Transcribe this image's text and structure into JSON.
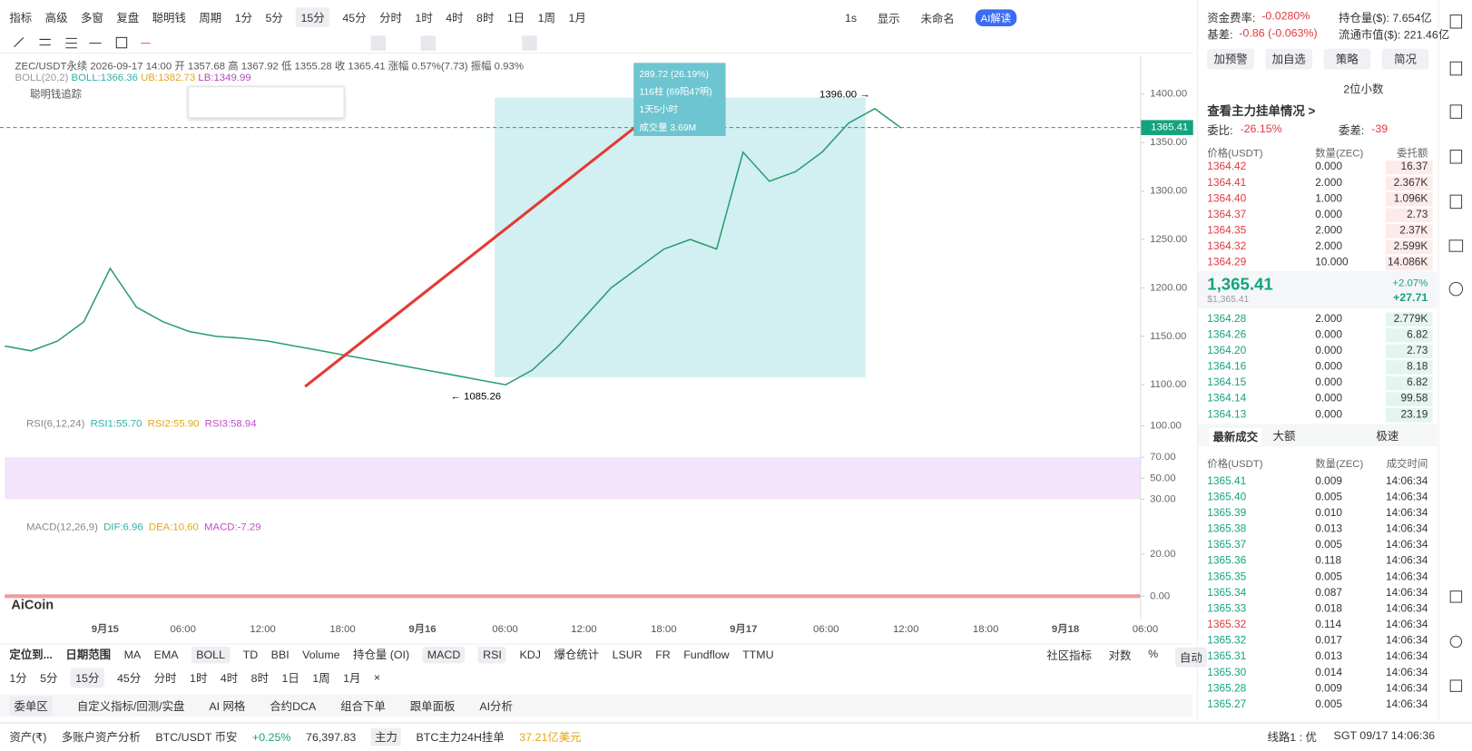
{
  "toolbar": {
    "items": [
      "指标",
      "高级",
      "多窗",
      "复盘",
      "聪明钱",
      "周期",
      "1分",
      "5分",
      "15分",
      "45分",
      "分时",
      "1时",
      "4时",
      "8时",
      "1日",
      "1周",
      "1月"
    ],
    "right": [
      "1s",
      "显示",
      "未命名",
      "AI解读"
    ]
  },
  "info": {
    "symbol_line": "ZEC/USDT永续  2026-09-17 14:00  开 1357.68  高 1367.92  低 1355.28  收 1365.41  涨幅 0.57%(7.73)  振幅 0.93%",
    "boll_name": "BOLL(20,2)",
    "boll": "BOLL:1366.36",
    "ub": "UB:1382.73",
    "lb": "LB:1349.99",
    "smart": "聪明钱追踪"
  },
  "measure": [
    "289.72 (26.19%)",
    "116柱 (69阳47明)",
    "1天5小时",
    "成交量 3.69M"
  ],
  "chart_data": [
    {
      "type": "line",
      "name": "ZEC/USDT",
      "color": "#2a9d6f",
      "values": [
        1140,
        1135,
        1145,
        1165,
        1220,
        1180,
        1165,
        1155,
        1150,
        1148,
        1145,
        1140,
        1135,
        1130,
        1125,
        1120,
        1115,
        1110,
        1105,
        1100,
        1115,
        1140,
        1170,
        1200,
        1220,
        1240,
        1250,
        1240,
        1340,
        1310,
        1320,
        1340,
        1370,
        1385,
        1365
      ],
      "ylim": [
        1071,
        1439
      ],
      "yticks": [
        {
          "value": 1400,
          "label": "1400.00"
        },
        {
          "value": 1350,
          "label": "1350.00"
        },
        {
          "value": 1300,
          "label": "1300.00"
        },
        {
          "value": 1250,
          "label": "1250.00"
        },
        {
          "value": 1200,
          "label": "1200.00"
        },
        {
          "value": 1150,
          "label": "1150.00"
        },
        {
          "value": 1100,
          "label": "1100.00"
        }
      ],
      "annotations": [
        "1396.00 →",
        "← 1085.26"
      ],
      "last_price": {
        "value": 1365.41,
        "label": "1365.41"
      },
      "x_labels": [
        "9月15",
        "06:00",
        "12:00",
        "18:00",
        "9月16",
        "06:00",
        "12:00",
        "18:00",
        "9月17",
        "06:00",
        "12:00",
        "18:00",
        "9月18",
        "06:00"
      ]
    },
    {
      "type": "band",
      "legend": [
        "RSI(6,12,24)",
        "RSI1:55.70",
        "RSI2:55.90",
        "RSI3:58.94"
      ],
      "ylim": [
        14,
        108
      ],
      "yticks": [
        {
          "value": 100,
          "label": "100.00"
        },
        {
          "value": 70,
          "label": "70.00"
        },
        {
          "value": 50,
          "label": "50.00"
        },
        {
          "value": 30,
          "label": "30.00"
        }
      ],
      "color": "#f3e4fb"
    },
    {
      "type": "macd",
      "legend": [
        "MACD(12,26,9)",
        "DIF:6.96",
        "DEA:10.60",
        "MACD:-7.29"
      ],
      "ylim": [
        -11,
        36
      ],
      "yticks": [
        {
          "value": 20,
          "label": "20.00"
        },
        {
          "value": 0,
          "label": "0.00"
        }
      ]
    }
  ],
  "logo": "AiCoin",
  "bottom": {
    "row1": [
      "定位到...",
      "日期范围",
      "MA",
      "EMA",
      "BOLL",
      "TD",
      "BBI",
      "Volume",
      "持仓量 (OI)",
      "MACD",
      "RSI",
      "KDJ",
      "爆仓统计",
      "LSUR",
      "FR",
      "Fundflow",
      "TTMU"
    ],
    "row1_right": [
      "社区指标",
      "对数",
      "%",
      "自动"
    ],
    "row2": [
      "1分",
      "5分",
      "15分",
      "45分",
      "分时",
      "1时",
      "4时",
      "8时",
      "1日",
      "1周",
      "1月",
      "×"
    ],
    "tabs": [
      "委单区",
      "自定义指标/回测/实盘",
      "AI 网格",
      "合约DCA",
      "组合下单",
      "跟单面板",
      "AI分析"
    ]
  },
  "status": {
    "asset": "资产(₹)",
    "multi": "多账户资产分析",
    "pair": "BTC/USDT 币安",
    "change": "+0.25%",
    "price": "76,397.83",
    "main": "主力",
    "main_text": "BTC主力24H挂单",
    "main_value": "37.21亿美元",
    "line": "线路1 : 优",
    "time": "SGT 09/17 14:06:36"
  },
  "panel": {
    "stats": [
      "资金费率: ",
      "-0.0280%",
      "持仓量($): 7.654亿",
      "基差: ",
      "-0.86 (-0.063%)",
      "流通市值($): 221.46亿"
    ],
    "buttons": [
      "加预警",
      "加自选",
      "策略",
      "简况"
    ],
    "decimals": "2位小数",
    "view_main": "查看主力挂单情况 >",
    "ratio_label": "委比: ",
    "ratio": "-26.15%",
    "diff_label": "委差: ",
    "diff": "-39",
    "book_header": [
      "价格(USDT)",
      "数量(ZEC)",
      "委托额"
    ],
    "asks": [
      [
        "1364.42",
        "0.000",
        "16.37"
      ],
      [
        "1364.41",
        "2.000",
        "2.367K"
      ],
      [
        "1364.40",
        "1.000",
        "1.096K"
      ],
      [
        "1364.37",
        "0.000",
        "2.73"
      ],
      [
        "1364.35",
        "2.000",
        "2.37K"
      ],
      [
        "1364.32",
        "2.000",
        "2.599K"
      ],
      [
        "1364.29",
        "10.000",
        "14.086K"
      ]
    ],
    "mid": {
      "price": "1,365.41",
      "usd": "$1,365.41",
      "pct": "+2.07%",
      "chg": "+27.71"
    },
    "bids": [
      [
        "1364.28",
        "2.000",
        "2.779K"
      ],
      [
        "1364.26",
        "0.000",
        "6.82"
      ],
      [
        "1364.20",
        "0.000",
        "2.73"
      ],
      [
        "1364.16",
        "0.000",
        "8.18"
      ],
      [
        "1364.15",
        "0.000",
        "6.82"
      ],
      [
        "1364.14",
        "0.000",
        "99.58"
      ],
      [
        "1364.13",
        "0.000",
        "23.19"
      ]
    ],
    "trade_tabs": [
      "最新成交",
      "大额",
      "极速"
    ],
    "trade_header": [
      "价格(USDT)",
      "数量(ZEC)",
      "成交时间"
    ],
    "trades": [
      [
        "1365.41",
        "0.009",
        "14:06:34",
        "#14a37f"
      ],
      [
        "1365.40",
        "0.005",
        "14:06:34",
        "#14a37f"
      ],
      [
        "1365.39",
        "0.010",
        "14:06:34",
        "#14a37f"
      ],
      [
        "1365.38",
        "0.013",
        "14:06:34",
        "#14a37f"
      ],
      [
        "1365.37",
        "0.005",
        "14:06:34",
        "#14a37f"
      ],
      [
        "1365.36",
        "0.118",
        "14:06:34",
        "#14a37f"
      ],
      [
        "1365.35",
        "0.005",
        "14:06:34",
        "#14a37f"
      ],
      [
        "1365.34",
        "0.087",
        "14:06:34",
        "#14a37f"
      ],
      [
        "1365.33",
        "0.018",
        "14:06:34",
        "#14a37f"
      ],
      [
        "1365.32",
        "0.114",
        "14:06:34",
        "#e0383e"
      ],
      [
        "1365.32",
        "0.017",
        "14:06:34",
        "#14a37f"
      ],
      [
        "1365.31",
        "0.013",
        "14:06:34",
        "#14a37f"
      ],
      [
        "1365.30",
        "0.014",
        "14:06:34",
        "#14a37f"
      ],
      [
        "1365.28",
        "0.009",
        "14:06:34",
        "#14a37f"
      ],
      [
        "1365.27",
        "0.005",
        "14:06:34",
        "#14a37f"
      ]
    ]
  }
}
